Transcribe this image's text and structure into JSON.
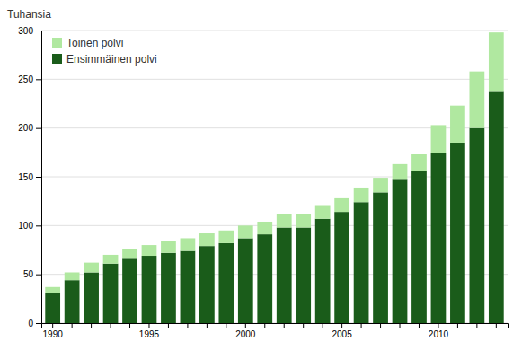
{
  "chart_data": {
    "type": "bar",
    "stacked": true,
    "y_label": "Tuhansia",
    "categories": [
      "1990",
      null,
      null,
      null,
      null,
      "1995",
      null,
      null,
      null,
      null,
      "2000",
      null,
      null,
      null,
      null,
      "2005",
      null,
      null,
      null,
      null,
      "2010",
      null,
      null,
      null
    ],
    "series": [
      {
        "name": "Ensimmäinen polvi",
        "color": "#1a5c1a",
        "values": [
          31,
          44,
          52,
          61,
          66,
          69,
          72,
          74,
          79,
          82,
          87,
          91,
          98,
          98,
          107,
          114,
          124,
          134,
          147,
          156,
          174,
          185,
          200,
          238
        ]
      },
      {
        "name": "Toinen polvi",
        "color": "#b0e8a0",
        "values": [
          6,
          8,
          10,
          9,
          10,
          11,
          12,
          13,
          13,
          13,
          13,
          13,
          14,
          14,
          14,
          14,
          15,
          15,
          16,
          17,
          29,
          38,
          58,
          60
        ]
      }
    ],
    "ylim": [
      0,
      300
    ],
    "yticks": [
      0,
      50,
      100,
      150,
      200,
      250,
      300
    ],
    "grid": true,
    "legend": "top-left"
  }
}
